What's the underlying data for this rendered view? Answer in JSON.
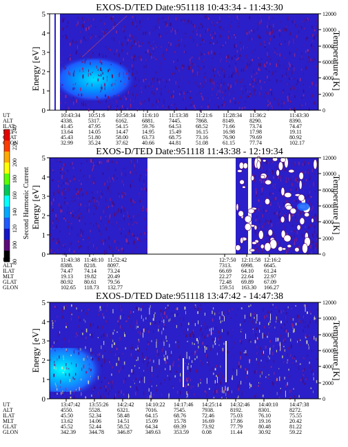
{
  "chart_data": [
    {
      "type": "heatmap",
      "title": "EXOS-D/TED   Date:951118  10:43:34 - 11:43:30",
      "ylabel": "Energy [eV]",
      "y2label": "Temperature [K]",
      "ylim": [
        0,
        5
      ],
      "y2lim": [
        0,
        12000
      ],
      "yticks": [
        "0",
        "1",
        "2",
        "3",
        "4",
        "5"
      ],
      "y2ticks": [
        "0",
        "2000",
        "4000",
        "6000",
        "8000",
        "10000",
        "12000"
      ],
      "row_labels": [
        "UT",
        "ALT",
        "ILAT",
        "MLT",
        "GLAT",
        "GLON"
      ],
      "columns": [
        [
          "10:43:34",
          "4338.",
          "41.45",
          "13.64",
          "45.43",
          "32.99"
        ],
        [
          "10:51:6",
          "5317.",
          "47.95",
          "14.05",
          "51.80",
          "35.24"
        ],
        [
          "10:58:34",
          "6162.",
          "54.15",
          "14.47",
          "58.00",
          "37.62"
        ],
        [
          "11:6:10",
          "6881.",
          "59.76",
          "14.95",
          "63.73",
          "40.66"
        ],
        [
          "11:13:38",
          "7445.",
          "64.53",
          "15.49",
          "68.75",
          "44.81"
        ],
        [
          "11:21:6",
          "7868.",
          "68.52",
          "16.15",
          "73.16",
          "51.08"
        ],
        [
          "11:28:34",
          "8149.",
          "71.66",
          "16.98",
          "76.90",
          "61.15"
        ],
        [
          "11:36:2",
          "8290.",
          "73.74",
          "17.98",
          "79.69",
          "77.74"
        ],
        [
          "11:43:30",
          "8390.",
          "74.47",
          "19.11",
          "80.92",
          "102.17"
        ]
      ]
    },
    {
      "type": "heatmap",
      "title": "EXOS-D/TED   Date:951118  11:43:38 - 12:19:34",
      "ylabel": "Energy [eV]",
      "y2label": "Temperature [K]",
      "ylim": [
        0,
        5
      ],
      "y2lim": [
        0,
        12000
      ],
      "yticks": [
        "0",
        "1",
        "2",
        "3",
        "4",
        "5"
      ],
      "y2ticks": [
        "0",
        "2000",
        "4000",
        "6000",
        "8000",
        "10000",
        "12000"
      ],
      "row_labels": [
        "UT",
        "ALT",
        "ILAT",
        "MLT",
        "GLAT",
        "GLON"
      ],
      "columns": [
        [
          "11:43:38",
          "8388.",
          "74.47",
          "19.13",
          "80.92",
          "102.65"
        ],
        [
          "11:48:10",
          "8218.",
          "74.14",
          "19.82",
          "80.61",
          "118.73"
        ],
        [
          "11:52:42",
          "8097.",
          "73.24",
          "20.49",
          "79.56",
          "132.77"
        ],
        [
          "12:7:50",
          "7313.",
          "66.69",
          "22.27",
          "72.48",
          "159.51"
        ],
        [
          "12:11:58",
          "6998.",
          "64.10",
          "22.64",
          "69.89",
          "163.30"
        ],
        [
          "12:16:2",
          "6645.",
          "61.24",
          "22.97",
          "67.09",
          "166.27"
        ]
      ]
    },
    {
      "type": "heatmap",
      "title": "EXOS-D/TED   Date:951118  13:47:42 - 14:47:38",
      "ylabel": "Energy [eV]",
      "y2label": "Temperature [K]",
      "ylim": [
        0,
        5
      ],
      "y2lim": [
        0,
        12000
      ],
      "yticks": [
        "0",
        "1",
        "2",
        "3",
        "4",
        "5"
      ],
      "y2ticks": [
        "0",
        "2000",
        "4000",
        "6000",
        "8000",
        "10000",
        "12000"
      ],
      "row_labels": [
        "UT",
        "ALT",
        "ILAT",
        "MLT",
        "GLAT",
        "GLON"
      ],
      "columns": [
        [
          "13:47:42",
          "4550.",
          "45.50",
          "13.62",
          "45.52",
          "342.39"
        ],
        [
          "13:55:26",
          "5528.",
          "52.34",
          "14.06",
          "52.44",
          "344.78"
        ],
        [
          "14:2:42",
          "6321.",
          "58.48",
          "14.51",
          "58.52",
          "346.87"
        ],
        [
          "14:10:22",
          "7016.",
          "64.15",
          "15.09",
          "64.34",
          "349.63"
        ],
        [
          "14:17:46",
          "7545.",
          "68.76",
          "15.78",
          "69.39",
          "353.59"
        ],
        [
          "14:25:14",
          "7938.",
          "72.46",
          "16.69",
          "73.92",
          "0.08"
        ],
        [
          "14:32:46",
          "8192.",
          "75.03",
          "17.86",
          "77.79",
          "11.44"
        ],
        [
          "14:40:10",
          "8301.",
          "76.10",
          "19.16",
          "80.48",
          "30.92"
        ],
        [
          "14:47:38",
          "8272.",
          "75.55",
          "20.42",
          "81.22",
          "59.22"
        ]
      ]
    }
  ],
  "colorbar": {
    "label": "Second Harmonic Current",
    "ticks": [
      "80",
      "100",
      "120",
      "140",
      "160",
      "180",
      "200",
      "220",
      "240"
    ],
    "colors": [
      "#000000",
      "#5c0a7a",
      "#1414c8",
      "#1e5aff",
      "#00aaff",
      "#00ffff",
      "#00c85a",
      "#5aff00",
      "#ffff00",
      "#ffaa00",
      "#ff3c00",
      "#e60000"
    ]
  }
}
